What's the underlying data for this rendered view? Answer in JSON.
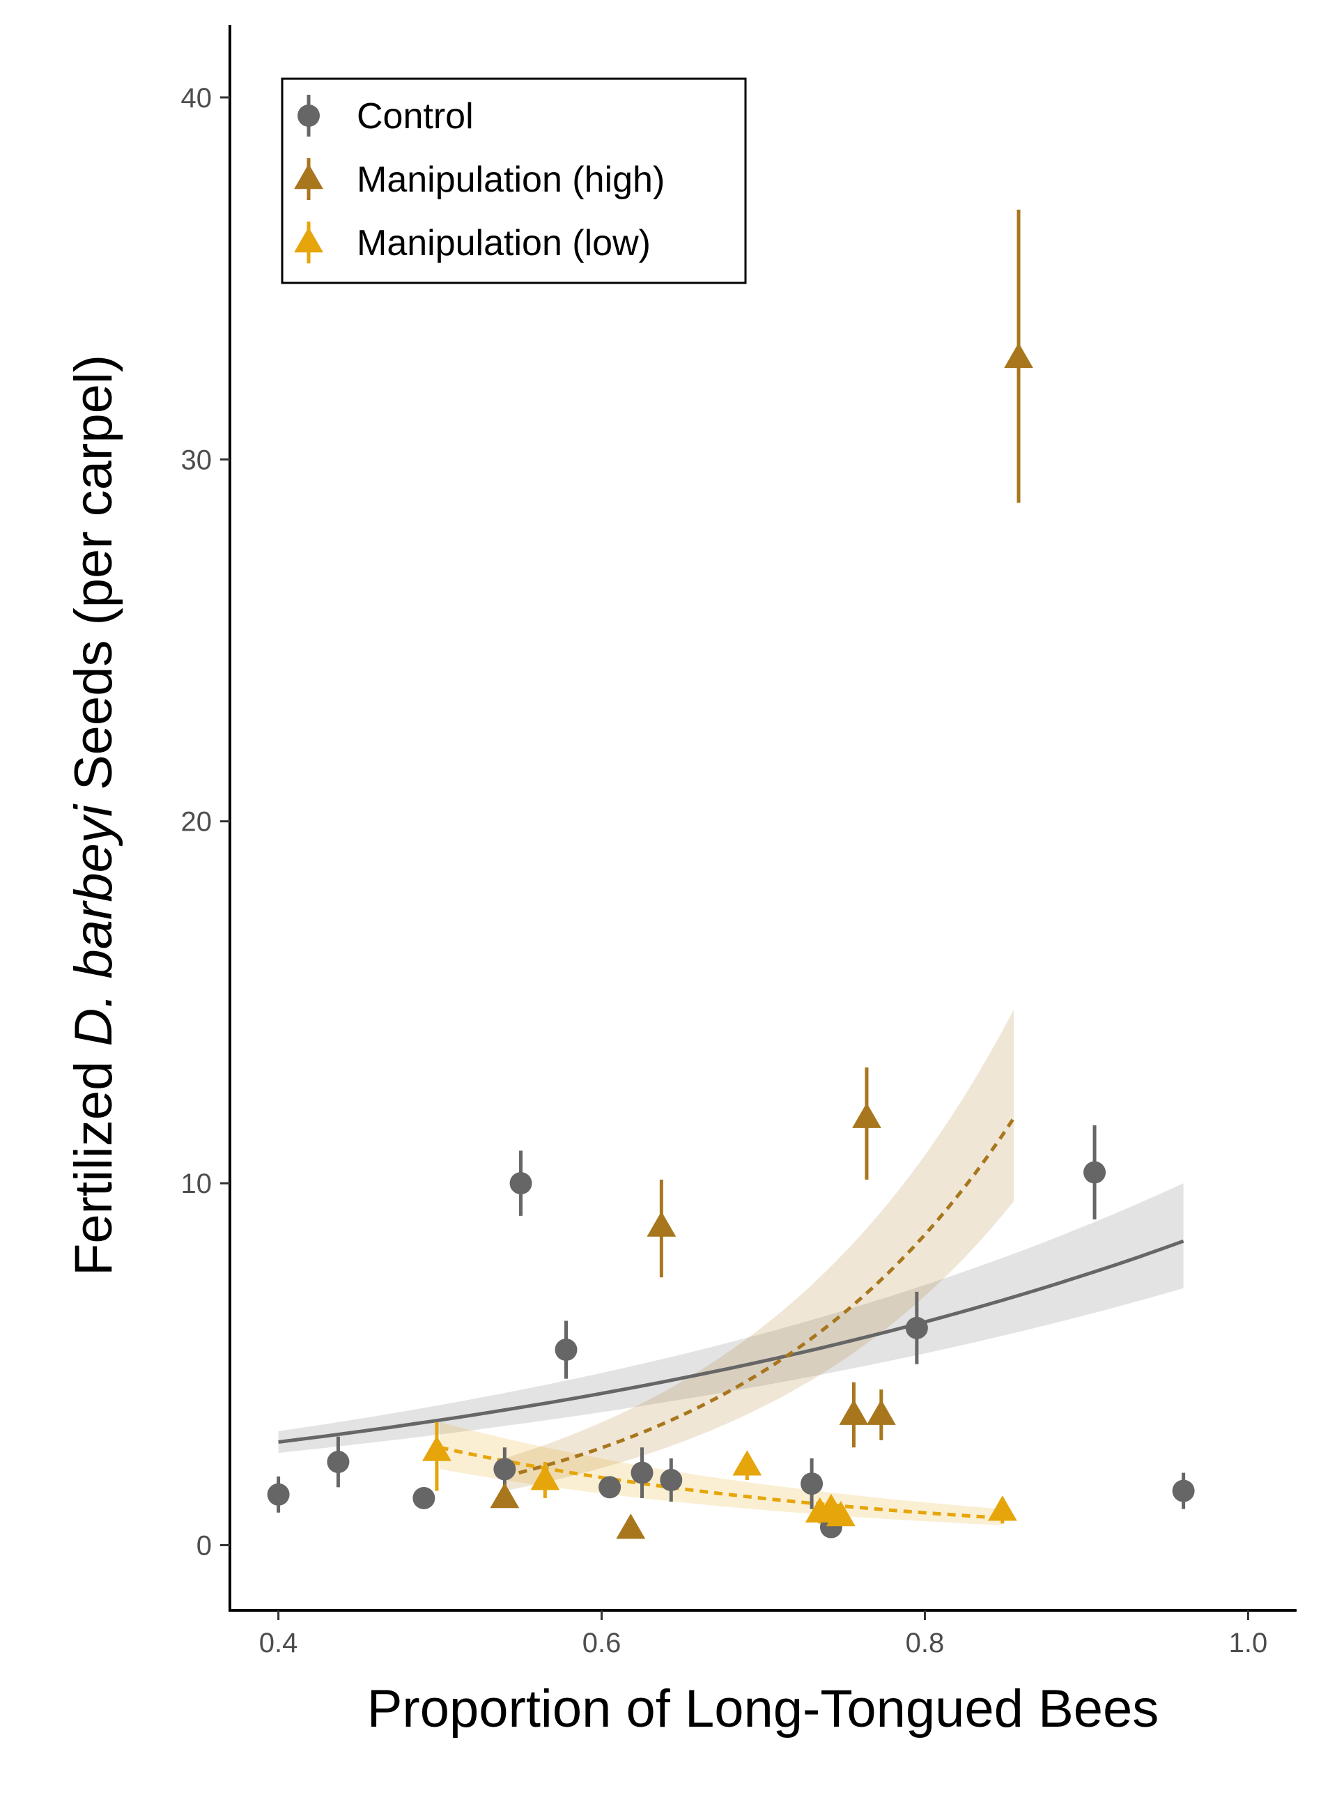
{
  "chart_data": {
    "type": "scatter",
    "title": "",
    "xlabel": "Proportion of Long-Tongued Bees",
    "ylabel_parts": [
      "Fertilized ",
      "D. barbeyi",
      " Seeds (per carpel)"
    ],
    "xlim": [
      0.37,
      1.03
    ],
    "ylim": [
      -1.8,
      42
    ],
    "x_ticks": [
      0.4,
      0.6,
      0.8,
      1.0
    ],
    "x_tick_labels": [
      "0.4",
      "0.6",
      "0.8",
      "1.0"
    ],
    "y_ticks": [
      0,
      10,
      20,
      30,
      40
    ],
    "y_tick_labels": [
      "0",
      "10",
      "20",
      "30",
      "40"
    ],
    "grid": false,
    "legend_position": "top-left",
    "series": [
      {
        "name": "Control",
        "color": "#666666",
        "marker": "circle",
        "points": [
          {
            "x": 0.4,
            "y": 1.4,
            "lo": 0.9,
            "hi": 1.9
          },
          {
            "x": 0.437,
            "y": 2.3,
            "lo": 1.6,
            "hi": 3.0
          },
          {
            "x": 0.49,
            "y": 1.3,
            "lo": 1.1,
            "hi": 1.5
          },
          {
            "x": 0.54,
            "y": 2.1,
            "lo": 1.5,
            "hi": 2.7
          },
          {
            "x": 0.55,
            "y": 10.0,
            "lo": 9.1,
            "hi": 10.9
          },
          {
            "x": 0.578,
            "y": 5.4,
            "lo": 4.6,
            "hi": 6.2
          },
          {
            "x": 0.605,
            "y": 1.6,
            "lo": 1.4,
            "hi": 1.8
          },
          {
            "x": 0.625,
            "y": 2.0,
            "lo": 1.3,
            "hi": 2.7
          },
          {
            "x": 0.643,
            "y": 1.8,
            "lo": 1.2,
            "hi": 2.4
          },
          {
            "x": 0.73,
            "y": 1.7,
            "lo": 1.0,
            "hi": 2.4
          },
          {
            "x": 0.742,
            "y": 0.5,
            "lo": 0.3,
            "hi": 0.7
          },
          {
            "x": 0.795,
            "y": 6.0,
            "lo": 5.0,
            "hi": 7.0
          },
          {
            "x": 0.905,
            "y": 10.3,
            "lo": 9.0,
            "hi": 11.6
          },
          {
            "x": 0.96,
            "y": 1.5,
            "lo": 1.0,
            "hi": 2.0
          }
        ],
        "fit": {
          "x_range": [
            0.4,
            0.96
          ],
          "y_at_x0": 2.85,
          "y_at_x1": 8.4,
          "ribbon_lo_x0": 2.55,
          "ribbon_hi_x0": 3.15,
          "ribbon_lo_x1": 7.1,
          "ribbon_hi_x1": 10.0,
          "dashed": false
        }
      },
      {
        "name": "Manipulation (high)",
        "color": "#A8761C",
        "marker": "triangle",
        "points": [
          {
            "x": 0.54,
            "y": 1.3,
            "lo": 1.1,
            "hi": 1.5
          },
          {
            "x": 0.618,
            "y": 0.45,
            "lo": 0.35,
            "hi": 0.55
          },
          {
            "x": 0.637,
            "y": 8.8,
            "lo": 7.4,
            "hi": 10.1
          },
          {
            "x": 0.756,
            "y": 3.6,
            "lo": 2.7,
            "hi": 4.5
          },
          {
            "x": 0.764,
            "y": 11.8,
            "lo": 10.1,
            "hi": 13.2
          },
          {
            "x": 0.773,
            "y": 3.6,
            "lo": 2.9,
            "hi": 4.3
          },
          {
            "x": 0.858,
            "y": 32.8,
            "lo": 28.8,
            "hi": 36.9
          }
        ],
        "fit": {
          "x_range": [
            0.54,
            0.855
          ],
          "y_at_x0": 1.9,
          "y_at_x1": 11.8,
          "ribbon_lo_x0": 1.5,
          "ribbon_hi_x0": 2.4,
          "ribbon_lo_x1": 9.5,
          "ribbon_hi_x1": 14.8,
          "dashed": true
        }
      },
      {
        "name": "Manipulation (low)",
        "color": "#E6A50A",
        "marker": "triangle",
        "points": [
          {
            "x": 0.498,
            "y": 2.6,
            "lo": 1.5,
            "hi": 3.4
          },
          {
            "x": 0.565,
            "y": 1.8,
            "lo": 1.3,
            "hi": 2.3
          },
          {
            "x": 0.69,
            "y": 2.2,
            "lo": 1.8,
            "hi": 2.5
          },
          {
            "x": 0.735,
            "y": 0.9,
            "lo": 0.6,
            "hi": 1.2
          },
          {
            "x": 0.742,
            "y": 1.0,
            "lo": 0.7,
            "hi": 1.3
          },
          {
            "x": 0.748,
            "y": 0.8,
            "lo": 0.6,
            "hi": 1.0
          },
          {
            "x": 0.848,
            "y": 0.95,
            "lo": 0.6,
            "hi": 1.3
          }
        ],
        "fit": {
          "x_range": [
            0.5,
            0.848
          ],
          "y_at_x0": 2.7,
          "y_at_x1": 0.75,
          "ribbon_lo_x0": 2.1,
          "ribbon_hi_x0": 3.4,
          "ribbon_lo_x1": 0.55,
          "ribbon_hi_x1": 1.0,
          "dashed": true
        }
      }
    ]
  }
}
